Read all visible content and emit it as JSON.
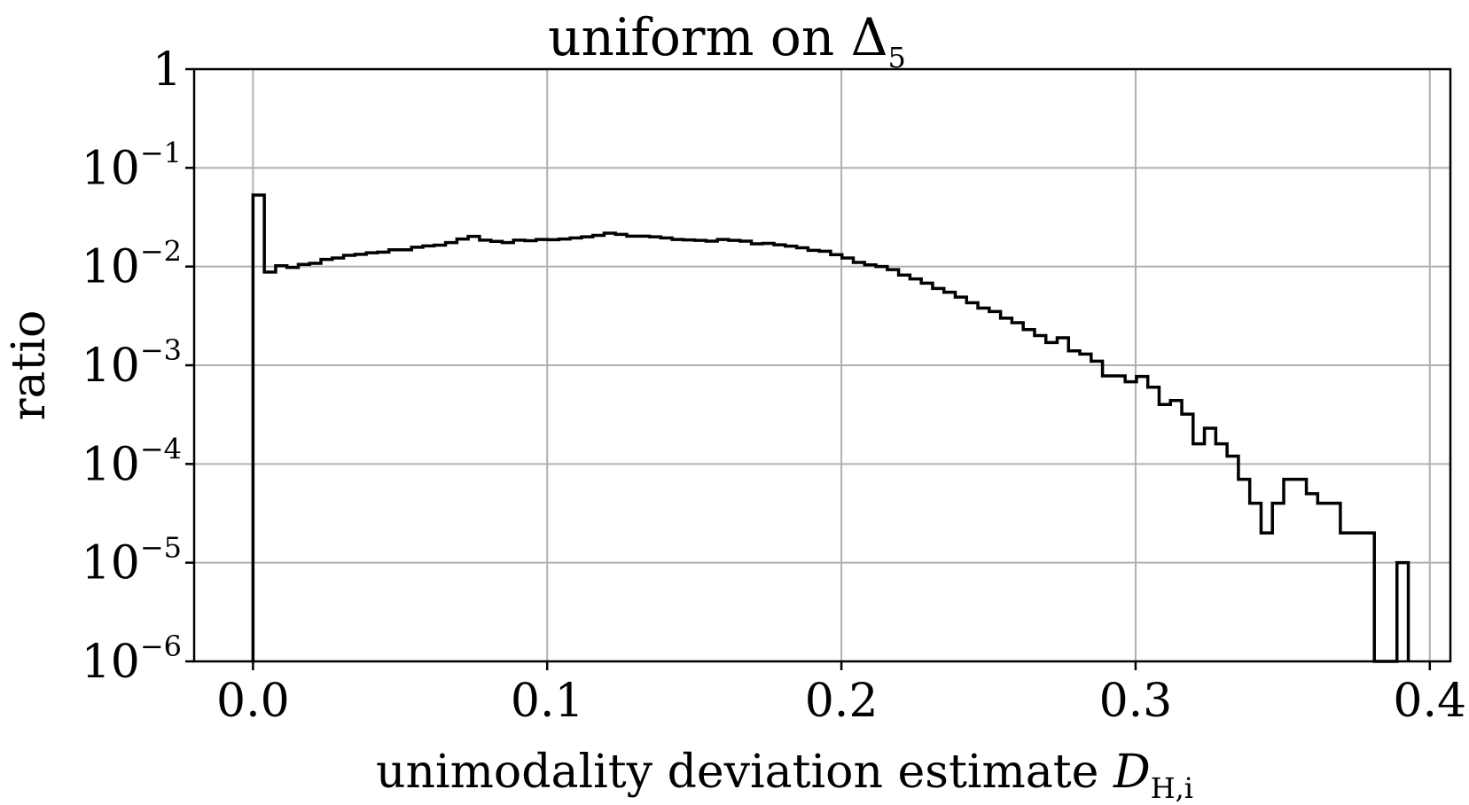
{
  "chart_data": {
    "type": "histogram",
    "title": "uniform on Δ",
    "title_subscript": "5",
    "xlabel": "unimodality deviation estimate ",
    "xlabel_symbol": "D",
    "xlabel_subscript": "H,i",
    "ylabel": "ratio",
    "yscale": "log",
    "xlim": [
      -0.02,
      0.407
    ],
    "ylim": [
      1e-06,
      1
    ],
    "grid": true,
    "x_ticks": [
      "0.0",
      "0.1",
      "0.2",
      "0.3",
      "0.4"
    ],
    "x_tick_values": [
      0.0,
      0.1,
      0.2,
      0.3,
      0.4
    ],
    "y_ticks": [
      {
        "value": 1,
        "base": "1",
        "exp": ""
      },
      {
        "value": 0.1,
        "base": "10",
        "exp": "−1"
      },
      {
        "value": 0.01,
        "base": "10",
        "exp": "−2"
      },
      {
        "value": 0.001,
        "base": "10",
        "exp": "−3"
      },
      {
        "value": 0.0001,
        "base": "10",
        "exp": "−4"
      },
      {
        "value": 1e-05,
        "base": "10",
        "exp": "−5"
      },
      {
        "value": 1e-06,
        "base": "10",
        "exp": "−6"
      }
    ],
    "bin_width": 0.00385,
    "bin_start": 0.0,
    "series": [
      {
        "values": [
          0.053,
          0.0088,
          0.0102,
          0.0098,
          0.0105,
          0.0108,
          0.0118,
          0.0122,
          0.013,
          0.0133,
          0.0138,
          0.014,
          0.0148,
          0.0148,
          0.0157,
          0.0162,
          0.0165,
          0.0175,
          0.019,
          0.0202,
          0.0185,
          0.018,
          0.0175,
          0.0185,
          0.0183,
          0.0188,
          0.0187,
          0.019,
          0.0195,
          0.02,
          0.0207,
          0.0218,
          0.0212,
          0.0203,
          0.0203,
          0.02,
          0.0195,
          0.0188,
          0.0186,
          0.0184,
          0.0181,
          0.0188,
          0.0184,
          0.0181,
          0.017,
          0.0172,
          0.0166,
          0.0161,
          0.0155,
          0.0146,
          0.0143,
          0.0132,
          0.0122,
          0.011,
          0.0104,
          0.01,
          0.0093,
          0.0082,
          0.0075,
          0.0068,
          0.006,
          0.0055,
          0.0049,
          0.0043,
          0.0038,
          0.0035,
          0.003,
          0.0027,
          0.0023,
          0.002,
          0.0017,
          0.0019,
          0.0014,
          0.0013,
          0.0011,
          0.00078,
          0.00078,
          0.00068,
          0.00077,
          0.0006,
          0.0004,
          0.00044,
          0.00032,
          0.00016,
          0.00023,
          0.00016,
          0.00012,
          7e-05,
          4e-05,
          2e-05,
          4e-05,
          7e-05,
          7e-05,
          5e-05,
          4e-05,
          4e-05,
          2e-05,
          2e-05,
          2e-05,
          0,
          0,
          1e-05
        ]
      }
    ]
  }
}
